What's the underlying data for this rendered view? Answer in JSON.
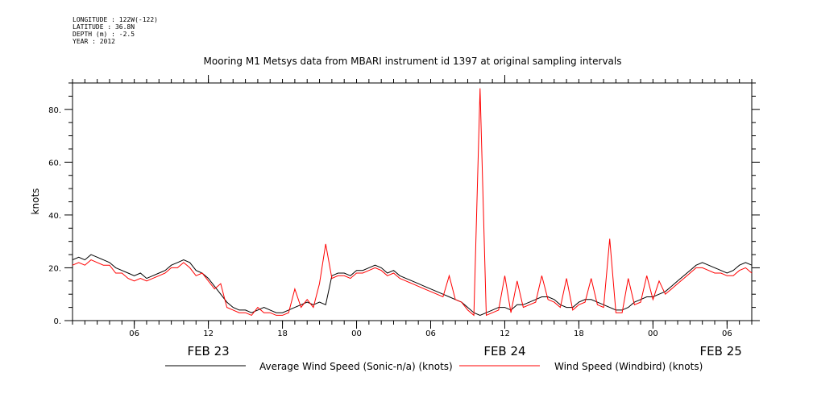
{
  "header": {
    "longitude": "LONGITUDE : 122W(-122)",
    "latitude": "LATITUDE : 36.8N",
    "depth": "DEPTH (m) : -2.5",
    "year": "YEAR : 2012"
  },
  "chart_data": {
    "type": "line",
    "title": "Mooring M1 Metsys data from MBARI instrument id 1397 at original sampling intervals",
    "ylabel": "knots",
    "ylim": [
      0,
      90
    ],
    "yticks": [
      0,
      20,
      40,
      60,
      80
    ],
    "ytick_labels": [
      "0.",
      "20.",
      "40.",
      "60.",
      "80."
    ],
    "xlim_hours": [
      0,
      55
    ],
    "x_unit": "hours after 2012-02-22 13:00",
    "xtick_labels": [
      {
        "h": 5,
        "label": "06"
      },
      {
        "h": 11,
        "label": "12"
      },
      {
        "h": 17,
        "label": "18"
      },
      {
        "h": 23,
        "label": "00"
      },
      {
        "h": 29,
        "label": "06"
      },
      {
        "h": 35,
        "label": "12"
      },
      {
        "h": 41,
        "label": "18"
      },
      {
        "h": 47,
        "label": "00"
      },
      {
        "h": 53,
        "label": "06"
      }
    ],
    "date_labels": [
      {
        "h": 11,
        "label": "FEB 23"
      },
      {
        "h": 35,
        "label": "FEB 24"
      },
      {
        "h": 52.5,
        "label": "FEB 25"
      }
    ],
    "series": [
      {
        "name": "Average Wind Speed (Sonic-n/a) (knots)",
        "color": "#000000",
        "x": [
          0,
          0.5,
          1,
          1.5,
          2,
          2.5,
          3,
          3.5,
          4,
          4.5,
          5,
          5.5,
          6,
          6.5,
          7,
          7.5,
          8,
          8.5,
          9,
          9.5,
          10,
          10.5,
          11,
          11.5,
          12,
          12.5,
          13,
          13.5,
          14,
          14.5,
          15,
          15.5,
          16,
          16.5,
          17,
          17.5,
          18,
          18.5,
          19,
          19.5,
          20,
          20.5,
          21,
          21.5,
          22,
          22.5,
          23,
          23.5,
          24,
          24.5,
          25,
          25.5,
          26,
          26.5,
          27,
          27.5,
          28,
          28.5,
          29,
          29.5,
          30,
          30.5,
          31,
          31.5,
          32,
          32.5,
          33,
          33.5,
          34,
          34.5,
          35,
          35.5,
          36,
          36.5,
          37,
          37.5,
          38,
          38.5,
          39,
          39.5,
          40,
          40.5,
          41,
          41.5,
          42,
          42.5,
          43,
          43.5,
          44,
          44.5,
          45,
          45.5,
          46,
          46.5,
          47,
          47.5,
          48,
          48.5,
          49,
          49.5,
          50,
          50.5,
          51,
          51.5,
          52,
          52.5,
          53,
          53.5,
          54,
          54.5,
          55
        ],
        "y": [
          23,
          24,
          23,
          25,
          24,
          23,
          22,
          20,
          19,
          18,
          17,
          18,
          16,
          17,
          18,
          19,
          21,
          22,
          23,
          22,
          19,
          18,
          16,
          13,
          10,
          7,
          5,
          4,
          4,
          3,
          4,
          5,
          4,
          3,
          3,
          4,
          5,
          6,
          7,
          6,
          7,
          6,
          17,
          18,
          18,
          17,
          19,
          19,
          20,
          21,
          20,
          18,
          19,
          17,
          16,
          15,
          14,
          13,
          12,
          11,
          10,
          9,
          8,
          7,
          5,
          3,
          2,
          3,
          4,
          5,
          5,
          4,
          6,
          6,
          7,
          8,
          9,
          9,
          8,
          6,
          5,
          5,
          7,
          8,
          8,
          7,
          6,
          5,
          4,
          4,
          5,
          7,
          8,
          9,
          9,
          10,
          11,
          13,
          15,
          17,
          19,
          21,
          22,
          21,
          20,
          19,
          18,
          19,
          21,
          22,
          21
        ]
      },
      {
        "name": "Wind Speed (Windbird) (knots)",
        "color": "#ff0000",
        "x": [
          0,
          0.5,
          1,
          1.5,
          2,
          2.5,
          3,
          3.5,
          4,
          4.5,
          5,
          5.5,
          6,
          6.5,
          7,
          7.5,
          8,
          8.5,
          9,
          9.5,
          10,
          10.5,
          11,
          11.5,
          12,
          12.5,
          13,
          13.5,
          14,
          14.5,
          15,
          15.5,
          16,
          16.5,
          17,
          17.5,
          18,
          18.5,
          19,
          19.5,
          20,
          20.5,
          21,
          21.5,
          22,
          22.5,
          23,
          23.5,
          24,
          24.5,
          25,
          25.5,
          26,
          26.5,
          27,
          27.5,
          28,
          28.5,
          29,
          29.5,
          30,
          30.5,
          31,
          31.5,
          32,
          32.5,
          33,
          33.5,
          34,
          34.5,
          35,
          35.5,
          36,
          36.5,
          37,
          37.5,
          38,
          38.5,
          39,
          39.5,
          40,
          40.5,
          41,
          41.5,
          42,
          42.5,
          43,
          43.5,
          44,
          44.5,
          45,
          45.5,
          46,
          46.5,
          47,
          47.5,
          48,
          48.5,
          49,
          49.5,
          50,
          50.5,
          51,
          51.5,
          52,
          52.5,
          53,
          53.5,
          54,
          54.5,
          55
        ],
        "y": [
          21,
          22,
          21,
          23,
          22,
          21,
          21,
          18,
          18,
          16,
          15,
          16,
          15,
          16,
          17,
          18,
          20,
          20,
          22,
          20,
          17,
          18,
          15,
          12,
          14,
          5,
          4,
          3,
          3,
          2,
          5,
          3,
          3,
          2,
          2,
          3,
          12,
          5,
          8,
          5,
          14,
          29,
          16,
          17,
          17,
          16,
          18,
          18,
          19,
          20,
          19,
          17,
          18,
          16,
          15,
          14,
          13,
          12,
          11,
          10,
          9,
          17,
          8,
          7,
          4,
          2,
          88,
          2,
          3,
          4,
          17,
          3,
          15,
          5,
          6,
          7,
          17,
          8,
          7,
          5,
          16,
          4,
          6,
          7,
          16,
          6,
          5,
          31,
          3,
          3,
          16,
          6,
          7,
          17,
          8,
          15,
          10,
          12,
          14,
          16,
          18,
          20,
          20,
          19,
          18,
          18,
          17,
          17,
          19,
          20,
          18
        ]
      }
    ]
  }
}
